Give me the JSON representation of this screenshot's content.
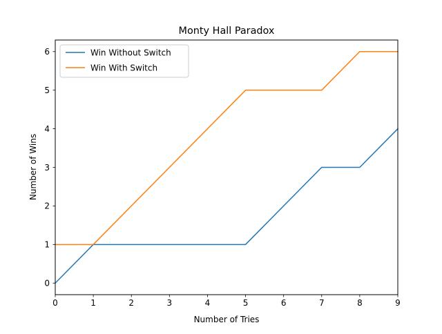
{
  "chart_data": {
    "type": "line",
    "title": "Monty Hall Paradox",
    "xlabel": "Number of Tries",
    "ylabel": "Number of Wins",
    "xlim": [
      0,
      9
    ],
    "ylim": [
      -0.3,
      6.3
    ],
    "xticks": [
      0,
      1,
      2,
      3,
      4,
      5,
      6,
      7,
      8,
      9
    ],
    "yticks": [
      0,
      1,
      2,
      3,
      4,
      5,
      6
    ],
    "grid": false,
    "legend_position": "upper left",
    "x": [
      0,
      1,
      2,
      3,
      4,
      5,
      6,
      7,
      8,
      9
    ],
    "series": [
      {
        "name": "Win Without Switch",
        "color": "#1f77b4",
        "values": [
          0,
          1,
          1,
          1,
          1,
          1,
          2,
          3,
          3,
          4
        ]
      },
      {
        "name": "Win With Switch",
        "color": "#ff7f0e",
        "values": [
          1,
          1,
          2,
          3,
          4,
          5,
          5,
          5,
          6,
          6
        ]
      }
    ]
  }
}
